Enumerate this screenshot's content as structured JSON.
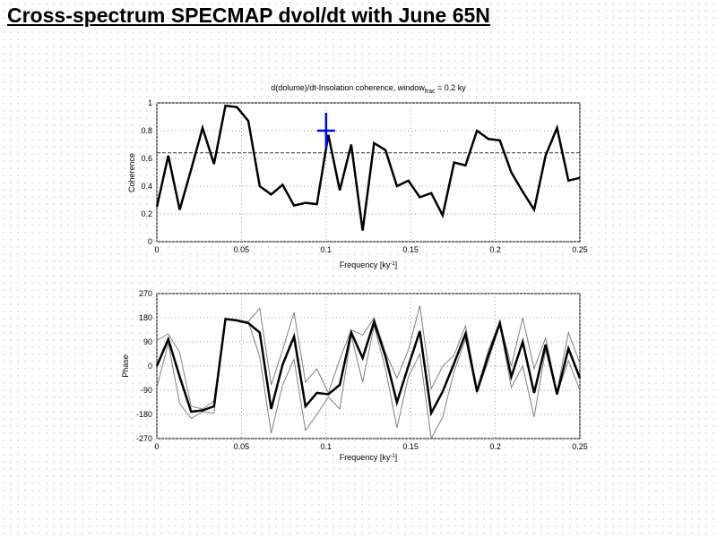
{
  "slide_title": "Cross-spectrum SPECMAP dvol/dt with June 65N",
  "chart_data": [
    {
      "type": "line",
      "title": "d(dolume)/dt-Insolation coherence, window",
      "title_subscript": "frac",
      "title_suffix": " = 0.2 ky",
      "xlabel": "Frequency [ky",
      "xlabel_sup": "-1",
      "xlabel_end": "]",
      "ylabel": "Coherence",
      "xlim": [
        0,
        0.25
      ],
      "ylim": [
        0,
        1
      ],
      "grid": true,
      "xticks": [
        "0",
        "0.05",
        "0.1",
        "0.15",
        "0.2",
        "0.25"
      ],
      "yticks": [
        "0",
        "0.2",
        "0.4",
        "0.6",
        "0.8",
        "1"
      ],
      "significance_level": 0.64,
      "marker": {
        "x": 0.1,
        "y": 0.8,
        "color": "#0000ff",
        "shape": "cross"
      },
      "series": [
        {
          "color": "#000000",
          "values": [
            0.25,
            0.62,
            0.23,
            0.52,
            0.82,
            0.56,
            0.98,
            0.97,
            0.87,
            0.4,
            0.34,
            0.41,
            0.26,
            0.28,
            0.27,
            0.77,
            0.37,
            0.7,
            0.08,
            0.71,
            0.66,
            0.4,
            0.44,
            0.32,
            0.35,
            0.19,
            0.57,
            0.55,
            0.8,
            0.74,
            0.73,
            0.5,
            0.36,
            0.23,
            0.62,
            0.82,
            0.44,
            0.46
          ]
        }
      ]
    },
    {
      "type": "line",
      "xlabel": "Frequency [ky",
      "xlabel_sup": "-1",
      "xlabel_end": "]",
      "ylabel": "Phase",
      "xlim": [
        0,
        0.25
      ],
      "ylim": [
        -270,
        270
      ],
      "grid": true,
      "xticks": [
        "0",
        "0.05",
        "0.1",
        "0.15",
        "0.2",
        "0.25"
      ],
      "yticks": [
        "-270",
        "-180",
        "-90",
        "0",
        "90",
        "180",
        "270"
      ],
      "series": [
        {
          "role": "phase",
          "color": "#000000",
          "values": [
            0,
            100,
            -40,
            -170,
            -165,
            -150,
            175,
            170,
            160,
            125,
            -160,
            5,
            110,
            -150,
            -100,
            -105,
            -70,
            125,
            30,
            165,
            35,
            -135,
            0,
            130,
            -175,
            -95,
            10,
            120,
            -95,
            40,
            160,
            -40,
            90,
            -100,
            80,
            -105,
            65,
            -45
          ]
        },
        {
          "role": "upper",
          "color": "#808080",
          "values": [
            95,
            120,
            50,
            -150,
            -160,
            -130,
            175,
            170,
            165,
            215,
            -70,
            60,
            200,
            -60,
            -10,
            -100,
            25,
            135,
            115,
            180,
            50,
            -45,
            60,
            225,
            -85,
            0,
            40,
            150,
            -85,
            60,
            165,
            0,
            180,
            -10,
            105,
            -95,
            125,
            10
          ]
        },
        {
          "role": "lower",
          "color": "#808080",
          "values": [
            -80,
            85,
            -140,
            -195,
            -170,
            -175,
            175,
            170,
            165,
            35,
            -250,
            -70,
            25,
            -240,
            -180,
            -115,
            -160,
            115,
            -60,
            150,
            -10,
            -230,
            -40,
            45,
            -270,
            -190,
            -20,
            100,
            -100,
            20,
            155,
            -80,
            0,
            -190,
            60,
            -105,
            20,
            -90
          ]
        }
      ]
    }
  ]
}
